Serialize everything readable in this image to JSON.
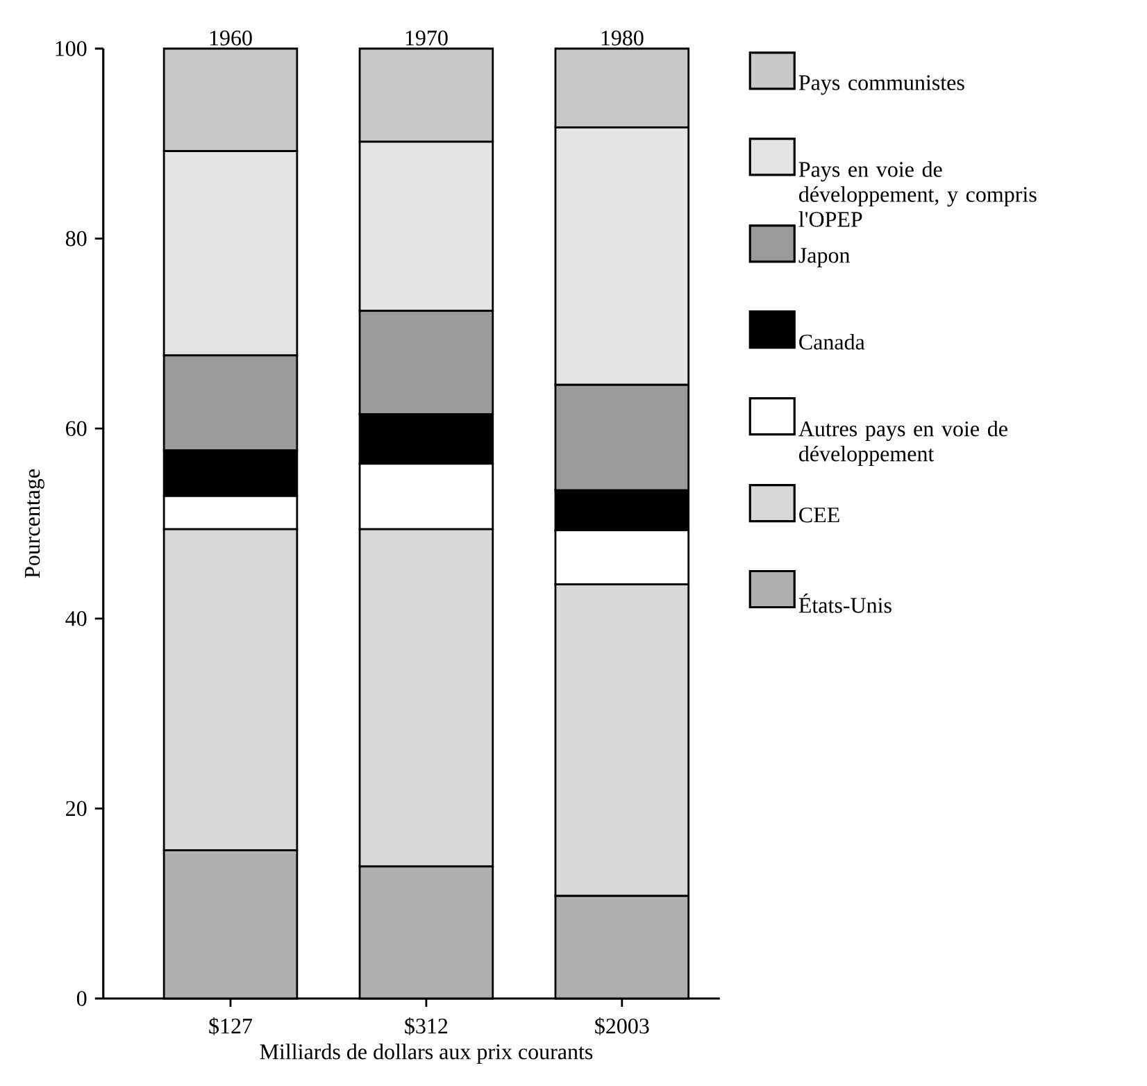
{
  "chart_data": {
    "type": "bar",
    "stacked": true,
    "categories": [
      "$127",
      "$312",
      "$2003"
    ],
    "annotations": [
      {
        "text": "1960",
        "x": "$127",
        "y": 100
      },
      {
        "text": "1970",
        "x": "$312",
        "y": 100
      },
      {
        "text": "1980",
        "x": "$2003",
        "y": 100
      }
    ],
    "xlabel": "Milliards de dollars aux prix courants",
    "ylabel": "Pourcentage",
    "ylim": [
      0,
      100
    ],
    "yticks": [
      0,
      20,
      40,
      60,
      80,
      100
    ],
    "legend": "top right",
    "series": [
      {
        "name": "États-Unis",
        "color": "#b0b0b0",
        "values": [
          15.6,
          13.9,
          10.8
        ]
      },
      {
        "name": "CEE",
        "color": "#d8d8d8",
        "values": [
          33.8,
          35.5,
          32.8
        ]
      },
      {
        "name": "Autres pays en voie de développement",
        "color": "#ffffff",
        "values": [
          3.5,
          6.9,
          5.7
        ]
      },
      {
        "name": "Canada",
        "color": "#000000",
        "values": [
          4.8,
          5.2,
          4.2
        ]
      },
      {
        "name": "Japon",
        "color": "#9a9a9a",
        "values": [
          10.0,
          10.9,
          11.1
        ]
      },
      {
        "name": "Pays en voie de développement, y compris l'OPEP",
        "color": "#e4e4e4",
        "values": [
          21.5,
          17.8,
          27.1
        ]
      },
      {
        "name": "Pays communistes",
        "color": "#c8c8c8",
        "values": [
          10.8,
          9.8,
          8.3
        ]
      }
    ]
  }
}
